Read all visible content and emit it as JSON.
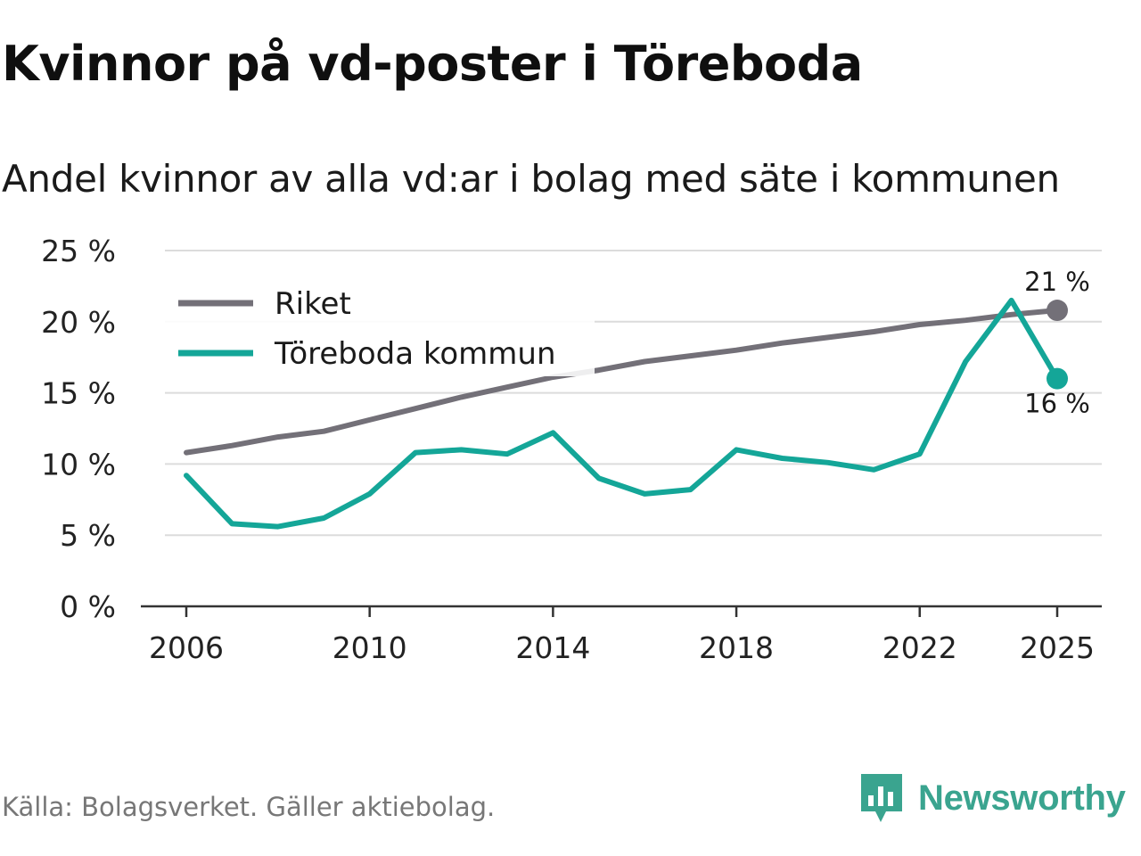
{
  "title": "Kvinnor på vd-poster i Töreboda",
  "subtitle": "Andel kvinnor av alla vd:ar i bolag med säte i kommunen",
  "source": "Källa: Bolagsverket. Gäller aktiebolag.",
  "brand": "Newsworthy",
  "colors": {
    "riket": "#737078",
    "kommun": "#14a698",
    "grid": "#dcdcdc",
    "brand": "#3aa48f"
  },
  "chart_data": {
    "type": "line",
    "title": "Kvinnor på vd-poster i Töreboda",
    "subtitle": "Andel kvinnor av alla vd:ar i bolag med säte i kommunen",
    "xlabel": "",
    "ylabel": "",
    "ylim": [
      0,
      25
    ],
    "xlim": [
      2006,
      2025
    ],
    "x_ticks": [
      2006,
      2010,
      2014,
      2018,
      2022,
      2025
    ],
    "y_ticks": [
      0,
      5,
      10,
      15,
      20,
      25
    ],
    "y_tick_labels": [
      "0 %",
      "5 %",
      "10 %",
      "15 %",
      "20 %",
      "25 %"
    ],
    "legend_position": "top-left",
    "series": [
      {
        "name": "Riket",
        "color": "#737078",
        "x": [
          2006,
          2007,
          2008,
          2009,
          2010,
          2011,
          2012,
          2013,
          2014,
          2015,
          2016,
          2017,
          2018,
          2019,
          2020,
          2021,
          2022,
          2023,
          2024,
          2025
        ],
        "values": [
          10.8,
          11.3,
          11.9,
          12.3,
          13.1,
          13.9,
          14.7,
          15.4,
          16.1,
          16.6,
          17.2,
          17.6,
          18.0,
          18.5,
          18.9,
          19.3,
          19.8,
          20.1,
          20.5,
          20.8
        ],
        "end_label": "21 %"
      },
      {
        "name": "Töreboda kommun",
        "color": "#14a698",
        "x": [
          2006,
          2007,
          2008,
          2009,
          2010,
          2011,
          2012,
          2013,
          2014,
          2015,
          2016,
          2017,
          2018,
          2019,
          2020,
          2021,
          2022,
          2023,
          2024,
          2025
        ],
        "values": [
          9.2,
          5.8,
          5.6,
          6.2,
          7.9,
          10.8,
          11.0,
          10.7,
          12.2,
          9.0,
          7.9,
          8.2,
          11.0,
          10.4,
          10.1,
          9.6,
          10.7,
          17.2,
          21.5,
          16.0
        ],
        "end_label": "16 %"
      }
    ]
  }
}
